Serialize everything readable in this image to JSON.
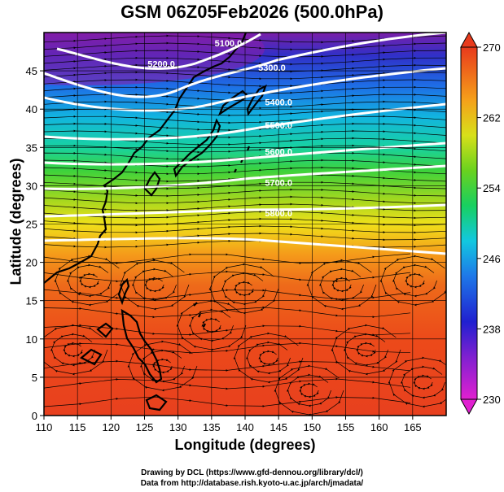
{
  "title": "GSM 06Z05Feb2026 (500.0hPa)",
  "xlabel": "Longitude (degrees)",
  "ylabel": "Latitude  (degrees)",
  "credits": [
    "Drawing by DCL (https://www.gfd-dennou.org/library/dcl/)",
    "Data from http://database.rish.kyoto-u.ac.jp/arch/jmadata/"
  ],
  "chart_data": {
    "type": "heatmap",
    "x_ticks": [
      110,
      115,
      120,
      125,
      130,
      135,
      140,
      145,
      150,
      155,
      160,
      165
    ],
    "y_ticks": [
      0,
      5,
      10,
      15,
      20,
      25,
      30,
      35,
      40,
      45
    ],
    "xlim": [
      110,
      170
    ],
    "ylim": [
      0,
      50
    ],
    "colorbar": {
      "min": 230,
      "max": 270,
      "tick_labels": [
        "230",
        "238",
        "246",
        "254",
        "262",
        "270"
      ]
    },
    "height_contours": [
      {
        "label": "5100.0",
        "label_lon": 137.5,
        "label_lat": 48.2
      },
      {
        "label": "5200.0",
        "label_lon": 127.5,
        "label_lat": 45.5
      },
      {
        "label": "5300.0",
        "label_lon": 144.0,
        "label_lat": 45.0
      },
      {
        "label": "5400.0",
        "label_lon": 145.0,
        "label_lat": 40.5
      },
      {
        "label": "5500.0",
        "label_lon": 145.0,
        "label_lat": 37.5
      },
      {
        "label": "5600.0",
        "label_lon": 145.0,
        "label_lat": 34.0
      },
      {
        "label": "5700.0",
        "label_lon": 145.0,
        "label_lat": 30.0
      },
      {
        "label": "5800.0",
        "label_lon": 145.0,
        "label_lat": 26.0
      }
    ],
    "grid": true,
    "vectors": "streamlines"
  },
  "colors": {
    "warm": "#e83a1c",
    "cold": "#7a1fa8",
    "contour": "#ffffff",
    "coast": "#000000"
  }
}
